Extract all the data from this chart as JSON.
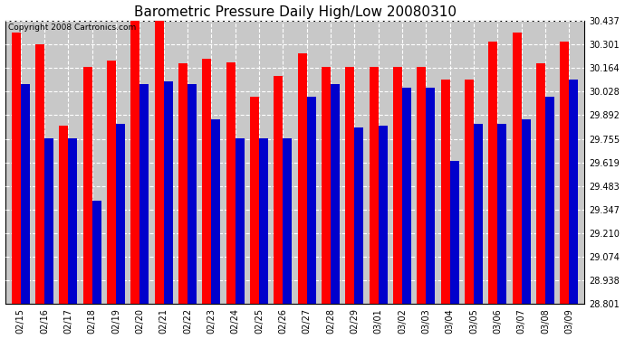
{
  "title": "Barometric Pressure Daily High/Low 20080310",
  "copyright_text": "Copyright 2008 Cartronics.com",
  "dates": [
    "02/15",
    "02/16",
    "02/17",
    "02/18",
    "02/19",
    "02/20",
    "02/21",
    "02/22",
    "02/23",
    "02/24",
    "02/25",
    "02/26",
    "02/27",
    "02/28",
    "02/29",
    "03/01",
    "03/02",
    "03/03",
    "03/04",
    "03/05",
    "03/06",
    "03/07",
    "03/08",
    "03/09"
  ],
  "highs": [
    30.37,
    30.3,
    29.83,
    30.17,
    30.21,
    30.44,
    30.44,
    30.19,
    30.22,
    30.2,
    30.0,
    30.12,
    30.25,
    30.17,
    30.17,
    30.17,
    30.17,
    30.17,
    30.1,
    30.1,
    30.32,
    30.37,
    30.19,
    30.32
  ],
  "lows": [
    30.07,
    29.76,
    29.76,
    29.4,
    29.84,
    30.07,
    30.09,
    30.07,
    29.87,
    29.76,
    29.76,
    29.76,
    30.0,
    30.07,
    29.82,
    29.83,
    30.05,
    30.05,
    29.63,
    29.84,
    29.84,
    29.87,
    30.0,
    30.1
  ],
  "high_color": "#ff0000",
  "low_color": "#0000cc",
  "bg_color": "#ffffff",
  "plot_bg_color": "#c8c8c8",
  "grid_color": "#ffffff",
  "ylim_min": 28.801,
  "ylim_max": 30.437,
  "bar_base": 28.801,
  "yticks": [
    28.801,
    28.938,
    29.074,
    29.21,
    29.347,
    29.483,
    29.619,
    29.755,
    29.892,
    30.028,
    30.164,
    30.301,
    30.437
  ],
  "bar_width": 0.38,
  "title_fontsize": 11,
  "tick_fontsize": 7,
  "copyright_fontsize": 6.5
}
